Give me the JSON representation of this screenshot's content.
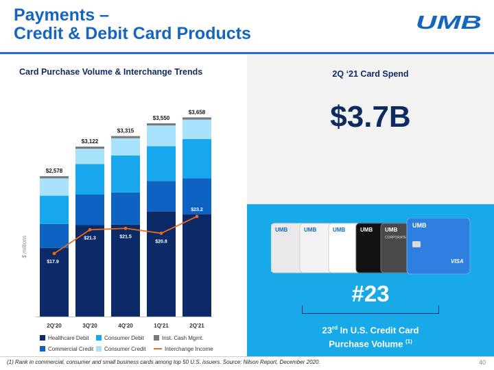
{
  "slide": {
    "title_line1": "Payments –",
    "title_line2": "Credit & Debit Card Products",
    "logo_text": "UMB",
    "page_number": "40",
    "footnote": "(1) Rank in commercial, consumer and small business cards among top 50 U.S. issuers. Source: Nilson Report, December 2020."
  },
  "colors": {
    "healthcare_debit": "#0b2a66",
    "commercial_credit": "#0e63c2",
    "consumer_debit": "#18a7ec",
    "consumer_credit": "#a9e2fb",
    "inst_cash_mgmt": "#7a7a7a",
    "interchange_income": "#ec6a1c",
    "accent": "#1565c0"
  },
  "chart_data": {
    "type": "bar",
    "title": "Card Purchase Volume & Interchange Trends",
    "ylabel": "$ millions",
    "categories": [
      "2Q'20",
      "3Q'20",
      "4Q'20",
      "1Q'21",
      "2Q'21"
    ],
    "totals": [
      2578,
      3122,
      3315,
      3550,
      3658
    ],
    "total_labels": [
      "$2,578",
      "$3,122",
      "$3,315",
      "$3,550",
      "$3,658"
    ],
    "series": [
      {
        "name": "Healthcare Debit",
        "values": [
          1260,
          1680,
          1690,
          1930,
          1880
        ]
      },
      {
        "name": "Commercial Credit",
        "values": [
          440,
          560,
          590,
          560,
          660
        ]
      },
      {
        "name": "Consumer Debit",
        "values": [
          520,
          560,
          680,
          640,
          720
        ]
      },
      {
        "name": "Consumer Credit",
        "values": [
          318,
          282,
          315,
          380,
          358
        ]
      },
      {
        "name": "Inst. Cash Mgmt.",
        "values": [
          40,
          40,
          40,
          40,
          40
        ]
      }
    ],
    "line_series": {
      "name": "Interchange Income",
      "values": [
        17.9,
        21.3,
        21.5,
        20.8,
        23.2
      ],
      "labels": [
        "$17.9",
        "$21.3",
        "$21.5",
        "$20.8",
        "$23.2"
      ]
    },
    "ylim": [
      0,
      3700
    ],
    "grid": false,
    "legend_placement": "bottom"
  },
  "card_spend": {
    "label": "2Q ‘21 Card Spend",
    "value": "$3.7B"
  },
  "ranking": {
    "rank": "#23",
    "ordinal": "23",
    "ordinal_suffix": "rd",
    "caption_rest": " In U.S. Credit Card",
    "caption_line2": "Purchase Volume",
    "footnote_ref": "(1)"
  },
  "card_images": {
    "brand": "UMB",
    "label_corporate": "CORPORATE",
    "label_visa": "VISA"
  }
}
